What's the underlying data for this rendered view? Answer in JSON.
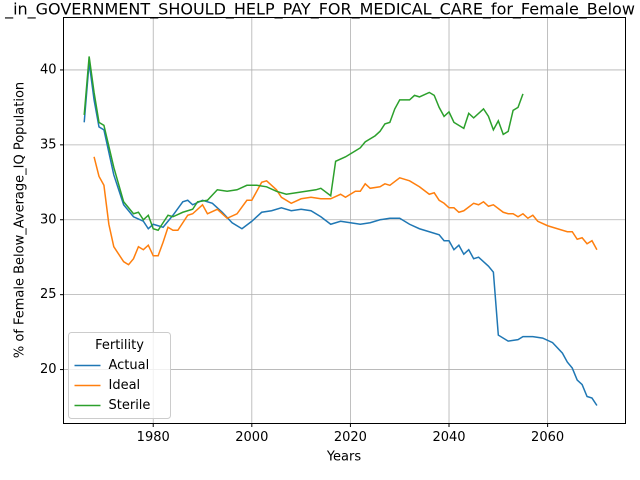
{
  "chart_data": {
    "type": "line",
    "title": "_in_GOVERNMENT_SHOULD_HELP_PAY_FOR_MEDICAL_CARE_for_Female_Below",
    "xlabel": "Years",
    "ylabel": "% of Female Below_Average_IQ Population",
    "xlim": [
      1961.8,
      2075.8
    ],
    "ylim": [
      16.4,
      43.5
    ],
    "xticks": [
      1980,
      2000,
      2020,
      2040,
      2060
    ],
    "yticks": [
      20,
      25,
      30,
      35,
      40
    ],
    "grid": true,
    "legend": {
      "title": "Fertility",
      "loc": "lower left"
    },
    "series": [
      {
        "name": "Actual",
        "color": "#1f77b4",
        "x": [
          1966,
          1967,
          1968,
          1969,
          1970,
          1972,
          1974,
          1976,
          1978,
          1979,
          1980,
          1982,
          1984,
          1986,
          1987,
          1988,
          1990,
          1992,
          1994,
          1996,
          1998,
          2000,
          2002,
          2004,
          2006,
          2008,
          2010,
          2012,
          2014,
          2016,
          2018,
          2020,
          2022,
          2024,
          2026,
          2028,
          2030,
          2032,
          2034,
          2036,
          2038,
          2039,
          2040,
          2041,
          2042,
          2043,
          2044,
          2045,
          2046,
          2048,
          2049,
          2050,
          2052,
          2054,
          2055,
          2057,
          2059,
          2061,
          2063,
          2064,
          2065,
          2066,
          2067,
          2068,
          2069,
          2070
        ],
        "values": [
          36.5,
          40.5,
          38,
          36.2,
          36,
          33,
          31,
          30.2,
          29.9,
          29.4,
          29.7,
          29.5,
          30.3,
          31.2,
          31.3,
          31,
          31.3,
          31.1,
          30.5,
          29.8,
          29.4,
          29.9,
          30.5,
          30.6,
          30.8,
          30.6,
          30.7,
          30.6,
          30.2,
          29.7,
          29.9,
          29.8,
          29.7,
          29.8,
          30,
          30.1,
          30.1,
          29.7,
          29.4,
          29.2,
          29,
          28.6,
          28.6,
          28,
          28.3,
          27.7,
          28,
          27.4,
          27.5,
          26.9,
          26.5,
          22.3,
          21.9,
          22,
          22.2,
          22.2,
          22.1,
          21.8,
          21.1,
          20.5,
          20.1,
          19.3,
          19,
          18.2,
          18.1,
          17.6
        ]
      },
      {
        "name": "Ideal",
        "color": "#ff7f0e",
        "x": [
          1968,
          1969,
          1970,
          1971,
          1972,
          1974,
          1975,
          1976,
          1977,
          1978,
          1979,
          1980,
          1981,
          1982,
          1983,
          1984,
          1985,
          1987,
          1988,
          1990,
          1991,
          1993,
          1995,
          1997,
          1999,
          2000,
          2002,
          2003,
          2005,
          2006,
          2008,
          2010,
          2012,
          2014,
          2016,
          2018,
          2019,
          2021,
          2022,
          2023,
          2024,
          2026,
          2027,
          2028,
          2030,
          2032,
          2034,
          2036,
          2037,
          2038,
          2039,
          2040,
          2041,
          2042,
          2043,
          2045,
          2046,
          2047,
          2048,
          2049,
          2051,
          2052,
          2053,
          2054,
          2055,
          2056,
          2057,
          2058,
          2060,
          2062,
          2064,
          2065,
          2066,
          2067,
          2068,
          2069,
          2070
        ],
        "values": [
          34.2,
          32.9,
          32.3,
          29.7,
          28.2,
          27.2,
          27,
          27.4,
          28.2,
          28,
          28.3,
          27.6,
          27.6,
          28.5,
          29.5,
          29.3,
          29.3,
          30.3,
          30.4,
          31,
          30.4,
          30.7,
          30.1,
          30.4,
          31.3,
          31.3,
          32.5,
          32.6,
          32,
          31.5,
          31.1,
          31.4,
          31.5,
          31.4,
          31.4,
          31.7,
          31.5,
          31.9,
          31.9,
          32.4,
          32.1,
          32.2,
          32.4,
          32.3,
          32.8,
          32.6,
          32.2,
          31.7,
          31.8,
          31.3,
          31.1,
          30.8,
          30.8,
          30.5,
          30.6,
          31.1,
          31,
          31.2,
          30.9,
          31,
          30.5,
          30.4,
          30.4,
          30.2,
          30.4,
          30.1,
          30.3,
          29.9,
          29.6,
          29.4,
          29.2,
          29.2,
          28.7,
          28.8,
          28.4,
          28.6,
          28
        ]
      },
      {
        "name": "Sterile",
        "color": "#2ca02c",
        "x": [
          1966,
          1967,
          1968,
          1969,
          1970,
          1972,
          1974,
          1975,
          1976,
          1977,
          1978,
          1979,
          1980,
          1981,
          1983,
          1984,
          1986,
          1988,
          1989,
          1991,
          1993,
          1995,
          1997,
          1999,
          2001,
          2003,
          2005,
          2007,
          2009,
          2011,
          2013,
          2014,
          2016,
          2017,
          2019,
          2021,
          2022,
          2023,
          2025,
          2026,
          2027,
          2028,
          2029,
          2030,
          2032,
          2033,
          2034,
          2036,
          2037,
          2038,
          2039,
          2040,
          2041,
          2043,
          2044,
          2045,
          2047,
          2048,
          2049,
          2050,
          2051,
          2052,
          2053,
          2054,
          2055
        ],
        "values": [
          37,
          40.9,
          38.5,
          36.5,
          36.3,
          33.5,
          31.2,
          30.8,
          30.4,
          30.5,
          30,
          30.3,
          29.4,
          29.3,
          30.3,
          30.2,
          30.5,
          30.7,
          31.2,
          31.3,
          32,
          31.9,
          32,
          32.3,
          32.3,
          32.2,
          31.9,
          31.7,
          31.8,
          31.9,
          32,
          32.1,
          31.6,
          33.9,
          34.2,
          34.6,
          34.8,
          35.2,
          35.6,
          35.9,
          36.4,
          36.5,
          37.4,
          38,
          38,
          38.3,
          38.2,
          38.5,
          38.3,
          37.5,
          36.9,
          37.2,
          36.5,
          36.1,
          37.1,
          36.8,
          37.4,
          36.9,
          36,
          36.6,
          35.7,
          35.9,
          37.3,
          37.5,
          38.4
        ]
      }
    ]
  }
}
